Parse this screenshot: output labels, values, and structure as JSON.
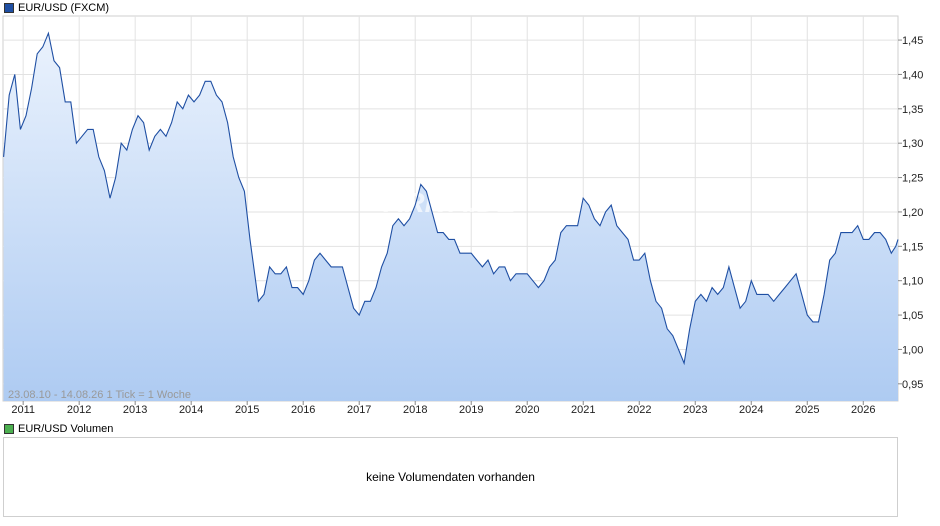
{
  "legend": {
    "price_label": "EUR/USD (FXCM)",
    "price_color": "#1f4fa3",
    "volume_label": "EUR/USD Volumen",
    "volume_color": "#4caf50"
  },
  "range_info": "23.08.10 - 14.08.26   1 Tick = 1 Woche",
  "watermark": "ARIVA.DE",
  "volume_message": "keine Volumendaten vorhanden",
  "chart_data": {
    "type": "area",
    "series": [
      {
        "name": "EUR/USD (FXCM)",
        "color": "#1f4fa3",
        "x": [
          2010.65,
          2010.75,
          2010.85,
          2010.95,
          2011.05,
          2011.15,
          2011.25,
          2011.35,
          2011.45,
          2011.55,
          2011.65,
          2011.75,
          2011.85,
          2011.95,
          2012.05,
          2012.15,
          2012.25,
          2012.35,
          2012.45,
          2012.55,
          2012.65,
          2012.75,
          2012.85,
          2012.95,
          2013.05,
          2013.15,
          2013.25,
          2013.35,
          2013.45,
          2013.55,
          2013.65,
          2013.75,
          2013.85,
          2013.95,
          2014.05,
          2014.15,
          2014.25,
          2014.35,
          2014.45,
          2014.55,
          2014.65,
          2014.75,
          2014.85,
          2014.95,
          2015.05,
          2015.1,
          2015.2,
          2015.3,
          2015.4,
          2015.5,
          2015.6,
          2015.7,
          2015.8,
          2015.9,
          2016.0,
          2016.1,
          2016.2,
          2016.3,
          2016.4,
          2016.5,
          2016.6,
          2016.7,
          2016.8,
          2016.9,
          2017.0,
          2017.1,
          2017.2,
          2017.3,
          2017.4,
          2017.5,
          2017.6,
          2017.7,
          2017.8,
          2017.9,
          2018.0,
          2018.1,
          2018.2,
          2018.3,
          2018.4,
          2018.5,
          2018.6,
          2018.7,
          2018.8,
          2018.9,
          2019.0,
          2019.1,
          2019.2,
          2019.3,
          2019.4,
          2019.5,
          2019.6,
          2019.7,
          2019.8,
          2019.9,
          2020.0,
          2020.1,
          2020.2,
          2020.3,
          2020.4,
          2020.5,
          2020.6,
          2020.7,
          2020.8,
          2020.9,
          2021.0,
          2021.1,
          2021.2,
          2021.3,
          2021.4,
          2021.5,
          2021.6,
          2021.7,
          2021.8,
          2021.9,
          2022.0,
          2022.1,
          2022.2,
          2022.3,
          2022.4,
          2022.5,
          2022.6,
          2022.7,
          2022.8,
          2022.9,
          2023.0,
          2023.1,
          2023.2,
          2023.3,
          2023.4,
          2023.5,
          2023.6,
          2023.7,
          2023.8,
          2023.9,
          2024.0,
          2024.1,
          2024.2,
          2024.3,
          2024.4,
          2024.5,
          2024.6,
          2024.7,
          2024.8,
          2024.9,
          2025.0,
          2025.1,
          2025.2,
          2025.3,
          2025.4,
          2025.5,
          2025.6,
          2025.7,
          2025.8,
          2025.9,
          2026.0,
          2026.1,
          2026.2,
          2026.3,
          2026.4,
          2026.5,
          2026.58,
          2026.62
        ],
        "values": [
          1.28,
          1.37,
          1.4,
          1.32,
          1.34,
          1.38,
          1.43,
          1.44,
          1.46,
          1.42,
          1.41,
          1.36,
          1.36,
          1.3,
          1.31,
          1.32,
          1.32,
          1.28,
          1.26,
          1.22,
          1.25,
          1.3,
          1.29,
          1.32,
          1.34,
          1.33,
          1.29,
          1.31,
          1.32,
          1.31,
          1.33,
          1.36,
          1.35,
          1.37,
          1.36,
          1.37,
          1.39,
          1.39,
          1.37,
          1.36,
          1.33,
          1.28,
          1.25,
          1.23,
          1.16,
          1.13,
          1.07,
          1.08,
          1.12,
          1.11,
          1.11,
          1.12,
          1.09,
          1.09,
          1.08,
          1.1,
          1.13,
          1.14,
          1.13,
          1.12,
          1.12,
          1.12,
          1.09,
          1.06,
          1.05,
          1.07,
          1.07,
          1.09,
          1.12,
          1.14,
          1.18,
          1.19,
          1.18,
          1.19,
          1.21,
          1.24,
          1.23,
          1.2,
          1.17,
          1.17,
          1.16,
          1.16,
          1.14,
          1.14,
          1.14,
          1.13,
          1.12,
          1.13,
          1.11,
          1.12,
          1.12,
          1.1,
          1.11,
          1.11,
          1.11,
          1.1,
          1.09,
          1.1,
          1.12,
          1.13,
          1.17,
          1.18,
          1.18,
          1.18,
          1.22,
          1.21,
          1.19,
          1.18,
          1.2,
          1.21,
          1.18,
          1.17,
          1.16,
          1.13,
          1.13,
          1.14,
          1.1,
          1.07,
          1.06,
          1.03,
          1.02,
          1.0,
          0.98,
          1.03,
          1.07,
          1.08,
          1.07,
          1.09,
          1.08,
          1.09,
          1.12,
          1.09,
          1.06,
          1.07,
          1.1,
          1.08,
          1.08,
          1.08,
          1.07,
          1.08,
          1.09,
          1.1,
          1.11,
          1.08,
          1.05,
          1.04,
          1.04,
          1.08,
          1.13,
          1.14,
          1.17,
          1.17,
          1.17,
          1.18,
          1.16,
          1.16,
          1.17,
          1.17,
          1.16,
          1.14,
          1.15,
          1.16
        ]
      }
    ],
    "x_ticks": [
      2011,
      2012,
      2013,
      2014,
      2015,
      2016,
      2017,
      2018,
      2019,
      2020,
      2021,
      2022,
      2023,
      2024,
      2025,
      2026
    ],
    "y_ticks": [
      "0,95",
      "1,00",
      "1,05",
      "1,10",
      "1,15",
      "1,20",
      "1,25",
      "1,30",
      "1,35",
      "1,40",
      "1,45"
    ],
    "xlim": [
      2010.64,
      2026.62
    ],
    "ylim": [
      0.925,
      1.485
    ],
    "grid": true,
    "legend_position": "top-left",
    "fill_gradient": [
      "#eaf2fd",
      "#aecbf2"
    ]
  }
}
